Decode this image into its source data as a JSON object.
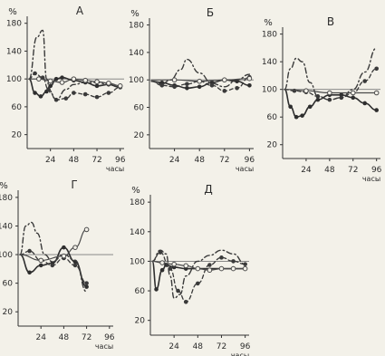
{
  "chart_data": [
    {
      "type": "line",
      "title": "А",
      "ylabel": "%",
      "xlabel": "часы",
      "xlim": [
        0,
        100
      ],
      "ylim": [
        0,
        190
      ],
      "xticks": [
        "24",
        "48",
        "72",
        "96"
      ],
      "yticks": [
        "20",
        "60",
        "100",
        "140",
        "180"
      ],
      "reference_line": 100,
      "series": [
        {
          "style": "solid",
          "x": [
            2,
            8,
            14,
            20,
            24,
            30,
            36,
            48,
            60,
            72,
            84,
            96
          ],
          "y": [
            100,
            80,
            75,
            82,
            90,
            100,
            102,
            98,
            95,
            90,
            92,
            88
          ]
        },
        {
          "style": "dash-dot",
          "x": [
            2,
            10,
            16,
            20,
            24,
            30,
            40,
            48,
            60,
            72,
            84,
            96
          ],
          "y": [
            100,
            160,
            170,
            100,
            80,
            70,
            85,
            92,
            95,
            95,
            92,
            88
          ]
        },
        {
          "style": "dashed",
          "x": [
            2,
            8,
            16,
            22,
            30,
            40,
            48,
            60,
            72,
            84,
            96
          ],
          "y": [
            100,
            108,
            102,
            85,
            70,
            72,
            80,
            78,
            74,
            80,
            88
          ]
        },
        {
          "style": "solid-open",
          "x": [
            2,
            12,
            24,
            36,
            48,
            60,
            72,
            84,
            96
          ],
          "y": [
            100,
            100,
            97,
            95,
            100,
            98,
            96,
            94,
            90
          ]
        }
      ]
    },
    {
      "type": "line",
      "title": "Б",
      "ylabel": "%",
      "xlabel": "часы",
      "xlim": [
        0,
        100
      ],
      "ylim": [
        0,
        190
      ],
      "xticks": [
        "24",
        "48",
        "72",
        "96"
      ],
      "yticks": [
        "20",
        "60",
        "100",
        "140",
        "180"
      ],
      "reference_line": 100,
      "series": [
        {
          "style": "solid",
          "x": [
            2,
            12,
            24,
            36,
            48,
            60,
            72,
            84,
            96
          ],
          "y": [
            98,
            96,
            92,
            88,
            90,
            96,
            100,
            98,
            92
          ]
        },
        {
          "style": "dash-dot",
          "x": [
            2,
            12,
            20,
            30,
            36,
            48,
            60,
            72,
            84,
            96
          ],
          "y": [
            98,
            94,
            100,
            115,
            130,
            110,
            95,
            90,
            100,
            108
          ]
        },
        {
          "style": "dashed",
          "x": [
            2,
            12,
            24,
            36,
            48,
            60,
            72,
            84,
            96
          ],
          "y": [
            98,
            92,
            90,
            94,
            98,
            92,
            84,
            88,
            104
          ]
        },
        {
          "style": "solid-open",
          "x": [
            2,
            24,
            48,
            72,
            96
          ],
          "y": [
            100,
            100,
            98,
            100,
            102
          ]
        }
      ]
    },
    {
      "type": "line",
      "title": "В",
      "ylabel": "%",
      "xlabel": "часы",
      "xlim": [
        0,
        100
      ],
      "ylim": [
        0,
        190
      ],
      "xticks": [
        "24",
        "48",
        "72",
        "96"
      ],
      "yticks": [
        "20",
        "60",
        "100",
        "140",
        "180"
      ],
      "reference_line": 100,
      "series": [
        {
          "style": "solid",
          "x": [
            2,
            8,
            14,
            20,
            28,
            36,
            48,
            60,
            72,
            84,
            96
          ],
          "y": [
            100,
            75,
            60,
            62,
            75,
            85,
            92,
            92,
            88,
            80,
            70
          ]
        },
        {
          "style": "dash-dot",
          "x": [
            2,
            8,
            14,
            20,
            28,
            36,
            48,
            60,
            72,
            84,
            96
          ],
          "y": [
            100,
            130,
            145,
            140,
            110,
            90,
            85,
            88,
            100,
            125,
            160
          ]
        },
        {
          "style": "dashed",
          "x": [
            2,
            12,
            24,
            36,
            48,
            60,
            72,
            84,
            96
          ],
          "y": [
            100,
            98,
            96,
            90,
            85,
            88,
            95,
            112,
            130
          ]
        },
        {
          "style": "solid-open",
          "x": [
            2,
            24,
            48,
            72,
            96
          ],
          "y": [
            100,
            98,
            95,
            95,
            95
          ]
        }
      ]
    },
    {
      "type": "line",
      "title": "Г",
      "ylabel": "%",
      "xlabel": "часы",
      "xlim": [
        0,
        100
      ],
      "ylim": [
        0,
        190
      ],
      "xticks": [
        "24",
        "48",
        "72",
        "96"
      ],
      "yticks": [
        "20",
        "60",
        "100",
        "140",
        "180"
      ],
      "reference_line": 100,
      "series": [
        {
          "style": "solid",
          "x": [
            2,
            12,
            24,
            36,
            48,
            60,
            72
          ],
          "y": [
            100,
            75,
            85,
            88,
            110,
            90,
            55
          ]
        },
        {
          "style": "dash-dot",
          "x": [
            2,
            8,
            14,
            20,
            28,
            36,
            48,
            60,
            72
          ],
          "y": [
            100,
            140,
            145,
            130,
            100,
            90,
            100,
            92,
            48
          ]
        },
        {
          "style": "dashed",
          "x": [
            2,
            12,
            24,
            36,
            48,
            60,
            72
          ],
          "y": [
            100,
            105,
            92,
            85,
            95,
            85,
            60
          ]
        },
        {
          "style": "solid-open",
          "x": [
            2,
            24,
            48,
            60,
            72
          ],
          "y": [
            100,
            92,
            98,
            110,
            135
          ]
        }
      ]
    },
    {
      "type": "line",
      "title": "Д",
      "ylabel": "%",
      "xlabel": "часы",
      "xlim": [
        0,
        100
      ],
      "ylim": [
        0,
        190
      ],
      "xticks": [
        "24",
        "48",
        "72",
        "96"
      ],
      "yticks": [
        "20",
        "60",
        "100",
        "140",
        "180"
      ],
      "reference_line": 100,
      "series": [
        {
          "style": "solid",
          "x": [
            2,
            6,
            12,
            16,
            24,
            36,
            48,
            72,
            96
          ],
          "y": [
            100,
            62,
            88,
            95,
            92,
            90,
            90,
            90,
            90
          ]
        },
        {
          "style": "dash-dot",
          "x": [
            2,
            10,
            16,
            20,
            24,
            30,
            36,
            48,
            60,
            72,
            84,
            96
          ],
          "y": [
            100,
            115,
            110,
            80,
            50,
            55,
            80,
            100,
            108,
            115,
            110,
            96
          ]
        },
        {
          "style": "dashed",
          "x": [
            2,
            10,
            20,
            28,
            36,
            48,
            60,
            72,
            84,
            96
          ],
          "y": [
            100,
            112,
            90,
            60,
            45,
            70,
            95,
            105,
            100,
            96
          ]
        },
        {
          "style": "solid-open",
          "x": [
            2,
            12,
            24,
            36,
            48,
            60,
            72,
            84,
            96
          ],
          "y": [
            100,
            98,
            96,
            94,
            90,
            88,
            90,
            90,
            90
          ]
        }
      ]
    }
  ]
}
